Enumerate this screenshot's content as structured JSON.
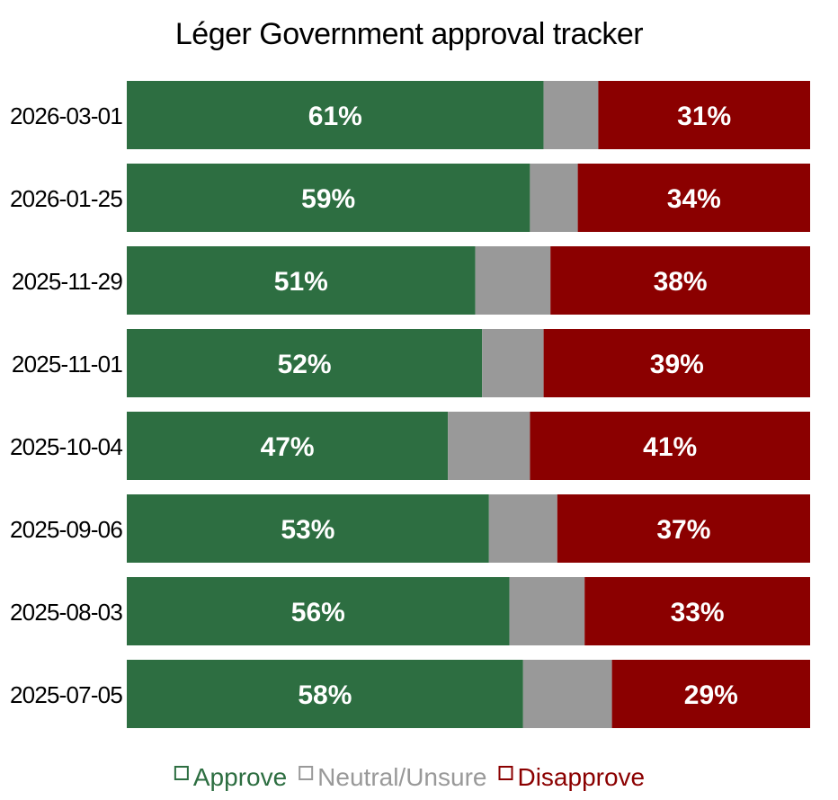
{
  "chart_data": {
    "type": "bar",
    "orientation": "horizontal",
    "stacked": true,
    "normalized": true,
    "title": "Léger Government approval tracker",
    "xlabel": "",
    "ylabel": "",
    "xlim": [
      0,
      100
    ],
    "grid": false,
    "legend_position": "bottom-center",
    "categories": [
      "2026-03-01",
      "2026-01-25",
      "2025-11-29",
      "2025-11-01",
      "2025-10-04",
      "2025-09-06",
      "2025-08-03",
      "2025-07-05"
    ],
    "series": [
      {
        "name": "Approve",
        "color": "#2d6e41",
        "values": [
          61,
          59,
          51,
          52,
          47,
          53,
          56,
          58
        ],
        "show_labels": true
      },
      {
        "name": "Neutral/Unsure",
        "color": "#999999",
        "values": [
          8,
          7,
          11,
          9,
          12,
          10,
          11,
          13
        ],
        "show_labels": false
      },
      {
        "name": "Disapprove",
        "color": "#8b0000",
        "values": [
          31,
          34,
          38,
          39,
          41,
          37,
          33,
          29
        ],
        "show_labels": true
      }
    ],
    "value_suffix": "%"
  }
}
